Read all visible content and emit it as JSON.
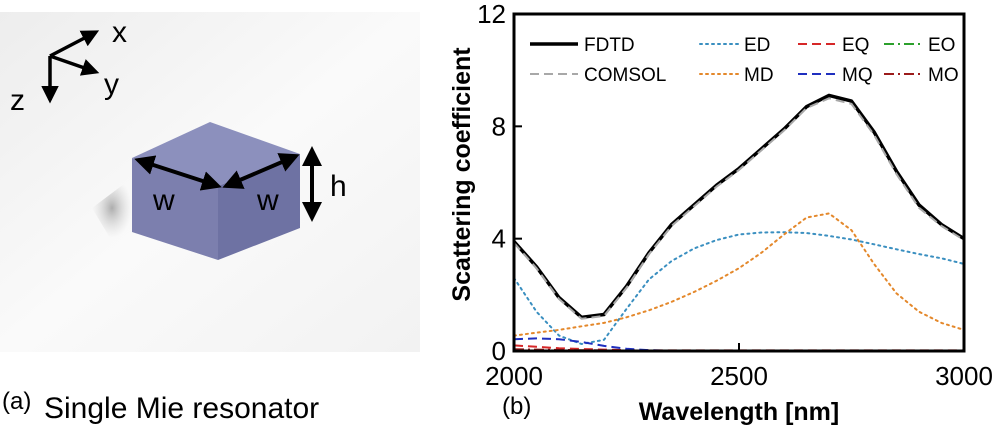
{
  "panel_a": {
    "label": "(a)",
    "caption": "Single Mie resonator",
    "axes": {
      "x": "x",
      "y": "y",
      "z": "z"
    },
    "dims": {
      "width_label_1": "w",
      "width_label_2": "w",
      "height_label": "h"
    },
    "colors": {
      "cube_front": "#7c7fae",
      "cube_side": "#6e72a3",
      "cube_top": "#8c90bd"
    }
  },
  "panel_b_label": "(b)",
  "chart_data": {
    "type": "line",
    "title": "",
    "xlabel": "Wavelength [nm]",
    "ylabel": "Scattering coefficient",
    "xlim": [
      2000,
      3000
    ],
    "ylim": [
      0,
      12
    ],
    "xticks": [
      2000,
      2500,
      3000
    ],
    "yticks": [
      0,
      4,
      8,
      12
    ],
    "grid": false,
    "legend": "top",
    "x": [
      2000,
      2050,
      2100,
      2150,
      2200,
      2250,
      2300,
      2350,
      2400,
      2450,
      2500,
      2550,
      2600,
      2650,
      2700,
      2750,
      2800,
      2850,
      2900,
      2950,
      3000
    ],
    "series": [
      {
        "name": "FDTD",
        "color": "#000000",
        "style": "solid",
        "width": 3.5,
        "values": [
          3.9,
          3.0,
          1.9,
          1.2,
          1.3,
          2.3,
          3.5,
          4.5,
          5.2,
          5.9,
          6.5,
          7.2,
          7.9,
          8.7,
          9.1,
          8.9,
          7.8,
          6.4,
          5.2,
          4.5,
          4.0
        ]
      },
      {
        "name": "COMSOL",
        "color": "#a8a8a8",
        "style": "dashed",
        "width": 2,
        "values": [
          3.85,
          2.95,
          1.85,
          1.15,
          1.25,
          2.25,
          3.45,
          4.45,
          5.15,
          5.85,
          6.45,
          7.15,
          7.85,
          8.65,
          9.0,
          8.8,
          7.7,
          6.3,
          5.1,
          4.45,
          3.95
        ]
      },
      {
        "name": "ED",
        "color": "#3a8fc0",
        "style": "dotted",
        "width": 2,
        "values": [
          2.6,
          1.4,
          0.55,
          0.25,
          0.4,
          1.5,
          2.55,
          3.2,
          3.65,
          3.95,
          4.15,
          4.22,
          4.23,
          4.2,
          4.1,
          3.97,
          3.8,
          3.62,
          3.45,
          3.3,
          3.1
        ]
      },
      {
        "name": "MD",
        "color": "#e4882b",
        "style": "dotted",
        "width": 2,
        "values": [
          0.55,
          0.65,
          0.75,
          0.88,
          1.0,
          1.2,
          1.45,
          1.75,
          2.1,
          2.5,
          2.95,
          3.5,
          4.15,
          4.75,
          4.9,
          4.3,
          3.1,
          2.05,
          1.4,
          1.0,
          0.75
        ]
      },
      {
        "name": "EQ",
        "color": "#d62728",
        "style": "dashed",
        "width": 2,
        "values": [
          0.2,
          0.15,
          0.1,
          0.07,
          0.05,
          0.03,
          0.02,
          0.02,
          0.02,
          0.02,
          0.02,
          0.02,
          0.02,
          0.02,
          0.02,
          0.02,
          0.02,
          0.02,
          0.02,
          0.02,
          0.02
        ]
      },
      {
        "name": "MQ",
        "color": "#1f2fbf",
        "style": "dashed",
        "width": 2,
        "values": [
          0.42,
          0.45,
          0.42,
          0.32,
          0.18,
          0.08,
          0.03,
          0.01,
          0,
          0,
          0,
          0,
          0,
          0,
          0,
          0,
          0,
          0,
          0,
          0,
          0
        ]
      },
      {
        "name": "EO",
        "color": "#2ca02c",
        "style": "dashdot",
        "width": 2,
        "values": [
          0.05,
          0.04,
          0.03,
          0.02,
          0.01,
          0.01,
          0.01,
          0.01,
          0.01,
          0.01,
          0.01,
          0.01,
          0.01,
          0.01,
          0.01,
          0.01,
          0.01,
          0.01,
          0.01,
          0.01,
          0.01
        ]
      },
      {
        "name": "MO",
        "color": "#9b1b1b",
        "style": "dashdot",
        "width": 2,
        "values": [
          0.06,
          0.05,
          0.04,
          0.03,
          0.02,
          0.01,
          0.01,
          0.01,
          0.01,
          0.01,
          0.01,
          0.01,
          0.01,
          0.01,
          0.01,
          0.01,
          0.01,
          0.01,
          0.01,
          0.01,
          0.01
        ]
      }
    ]
  }
}
